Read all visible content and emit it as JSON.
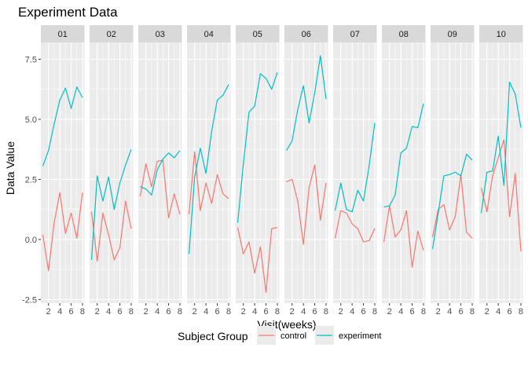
{
  "chart_data": {
    "type": "line",
    "title": "Experiment Data",
    "xlabel": "Visit(weeks)",
    "ylabel": "Data Value",
    "x": [
      1,
      2,
      3,
      4,
      5,
      6,
      7,
      8
    ],
    "xticks": [
      "2",
      "4",
      "6",
      "8"
    ],
    "yticks": [
      "-2.5",
      "0.0",
      "2.5",
      "5.0",
      "7.5"
    ],
    "ylim": [
      -2.65,
      8.2
    ],
    "xlim": [
      0.65,
      8.35
    ],
    "grid": true,
    "legend": {
      "title": "Subject Group",
      "position": "bottom",
      "entries": [
        "control",
        "experiment"
      ]
    },
    "colors": {
      "control": "#F8766D",
      "experiment": "#00BFC4",
      "panel_bg": "#EBEBEB",
      "strip_bg": "#D9D9D9",
      "grid": "#FFFFFF"
    },
    "facets": [
      {
        "label": "01",
        "control": [
          0.2,
          -1.3,
          0.7,
          1.95,
          0.25,
          1.1,
          0.05,
          1.95
        ],
        "experiment": [
          3.05,
          3.7,
          4.8,
          5.8,
          6.3,
          5.45,
          6.35,
          5.9
        ]
      },
      {
        "label": "02",
        "control": [
          1.15,
          -0.9,
          1.1,
          0.2,
          -0.85,
          -0.35,
          1.6,
          0.45
        ],
        "experiment": [
          -0.85,
          2.65,
          1.6,
          2.6,
          1.25,
          2.35,
          3.1,
          3.75
        ]
      },
      {
        "label": "03",
        "control": [
          1.8,
          3.15,
          2.2,
          3.25,
          3.3,
          0.9,
          1.9,
          1.05
        ],
        "experiment": [
          2.2,
          2.1,
          1.85,
          2.9,
          3.35,
          3.6,
          3.4,
          3.7
        ]
      },
      {
        "label": "04",
        "control": [
          1.05,
          3.65,
          1.2,
          2.35,
          1.5,
          2.7,
          1.9,
          1.7
        ],
        "experiment": [
          -0.6,
          2.6,
          3.8,
          2.75,
          4.5,
          5.8,
          6.0,
          6.45
        ]
      },
      {
        "label": "05",
        "control": [
          0.5,
          -0.6,
          -0.1,
          -1.4,
          -0.3,
          -2.2,
          0.45,
          0.5
        ],
        "experiment": [
          0.7,
          3.15,
          5.3,
          5.55,
          6.9,
          6.7,
          6.25,
          6.95
        ]
      },
      {
        "label": "06",
        "control": [
          2.4,
          2.5,
          1.6,
          -0.2,
          2.15,
          3.1,
          0.8,
          2.35
        ],
        "experiment": [
          3.7,
          4.1,
          5.4,
          6.4,
          4.85,
          6.1,
          7.65,
          5.85
        ]
      },
      {
        "label": "07",
        "control": [
          0.05,
          1.2,
          1.1,
          0.65,
          0.45,
          -0.1,
          -0.05,
          0.45
        ],
        "experiment": [
          1.2,
          2.35,
          1.25,
          1.15,
          2.05,
          1.6,
          3.05,
          4.85
        ]
      },
      {
        "label": "08",
        "control": [
          -0.1,
          1.4,
          0.1,
          0.4,
          1.2,
          -1.15,
          0.35,
          -0.45
        ],
        "experiment": [
          1.35,
          1.4,
          1.85,
          3.6,
          3.8,
          4.7,
          4.65,
          5.65
        ]
      },
      {
        "label": "09",
        "control": [
          0.1,
          1.25,
          1.45,
          0.4,
          0.95,
          2.7,
          0.3,
          0.05
        ],
        "experiment": [
          -0.4,
          1.1,
          2.65,
          2.7,
          2.8,
          2.65,
          3.55,
          3.3
        ]
      },
      {
        "label": "10",
        "control": [
          2.15,
          1.15,
          2.65,
          3.4,
          4.15,
          0.95,
          2.75,
          -0.5
        ],
        "experiment": [
          1.1,
          2.8,
          2.85,
          4.3,
          2.25,
          6.55,
          6.05,
          4.65
        ]
      }
    ]
  }
}
